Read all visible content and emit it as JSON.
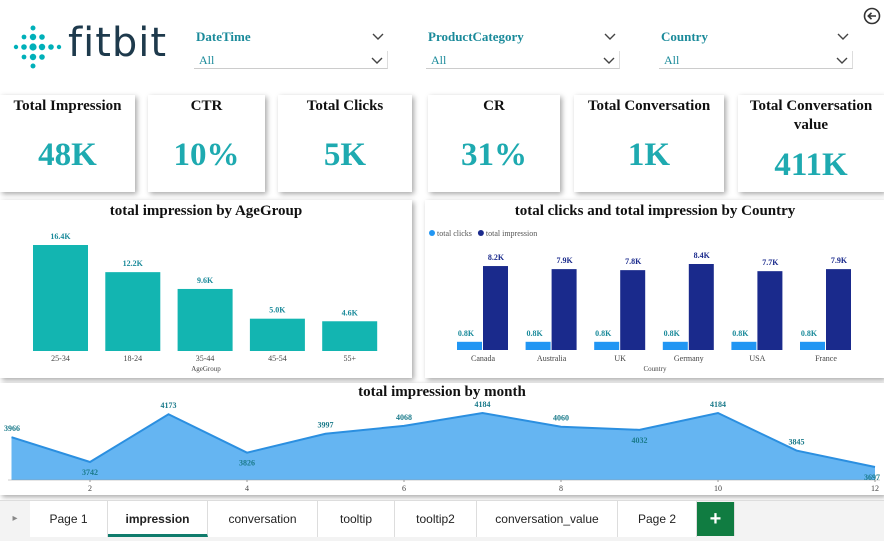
{
  "header": {
    "logo": "fitbit"
  },
  "filters": [
    {
      "label": "DateTime",
      "value": "All"
    },
    {
      "label": "ProductCategory",
      "value": "All"
    },
    {
      "label": "Country",
      "value": "All"
    }
  ],
  "cards": [
    {
      "title": "Total Impression",
      "value": "48K"
    },
    {
      "title": "CTR",
      "value": "10%"
    },
    {
      "title": "Total Clicks",
      "value": "5K"
    },
    {
      "title": "CR",
      "value": "31%"
    },
    {
      "title": "Total Conversation",
      "value": "1K"
    },
    {
      "title": "Total Conversation value",
      "value": "411K"
    }
  ],
  "chart_data": [
    {
      "type": "bar",
      "title": "total impression by AgeGroup",
      "categories": [
        "25-34",
        "18-24",
        "35-44",
        "45-54",
        "55+"
      ],
      "values": [
        16400,
        12200,
        9600,
        5000,
        4600
      ],
      "value_labels": [
        "16.4K",
        "12.2K",
        "9.6K",
        "5.0K",
        "4.6K"
      ],
      "x_label": "AgeGroup",
      "color": "#13b5b1"
    },
    {
      "type": "grouped_bar",
      "title": "total clicks and total impression by Country",
      "categories": [
        "Canada",
        "Australia",
        "UK",
        "Germany",
        "USA",
        "France"
      ],
      "series": [
        {
          "name": "total clicks",
          "color": "#2196f3",
          "values": [
            800,
            800,
            800,
            800,
            800,
            800
          ],
          "value_labels": [
            "0.8K",
            "0.8K",
            "0.8K",
            "0.8K",
            "0.8K",
            "0.8K"
          ]
        },
        {
          "name": "total impression",
          "color": "#1a2a8c",
          "values": [
            8200,
            7900,
            7800,
            8400,
            7700,
            7900
          ],
          "value_labels": [
            "8.2K",
            "7.9K",
            "7.8K",
            "8.4K",
            "7.7K",
            "7.9K"
          ]
        }
      ],
      "x_label": "Country"
    },
    {
      "type": "area",
      "title": "total impression by month",
      "x": [
        1,
        2,
        3,
        4,
        5,
        6,
        7,
        8,
        9,
        10,
        11,
        12
      ],
      "values": [
        3966,
        3742,
        4173,
        3826,
        3997,
        4068,
        4184,
        4060,
        4032,
        4184,
        3845,
        3697
      ],
      "xlim": [
        1,
        12
      ],
      "xticks": [
        2,
        4,
        6,
        8,
        10,
        12
      ],
      "color": "#4aa8f0"
    }
  ],
  "tabs": [
    "Page 1",
    "impression",
    "conversation",
    "tooltip",
    "tooltip2",
    "conversation_value",
    "Page 2",
    "+"
  ],
  "active_tab": 1
}
